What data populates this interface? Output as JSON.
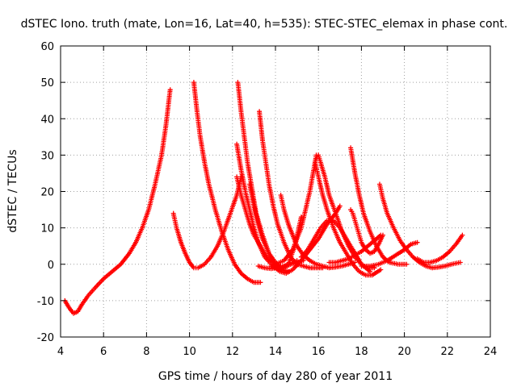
{
  "chart_data": {
    "type": "scatter",
    "title": "dSTEC Iono. truth (mate, Lon=16, Lat=40, h=535): STEC-STEC_elemax in phase cont.",
    "xlabel": "GPS time / hours of day 280 of year 2011",
    "ylabel": "dSTEC  / TECUs",
    "xlim": [
      4,
      24
    ],
    "ylim": [
      -20,
      60
    ],
    "x_ticks": [
      4,
      6,
      8,
      10,
      12,
      14,
      16,
      18,
      20,
      22,
      24
    ],
    "y_ticks": [
      -20,
      -10,
      0,
      10,
      20,
      30,
      40,
      50,
      60
    ],
    "x_tick_labels": [
      "4",
      "6",
      "8",
      "10",
      "12",
      "14",
      "16",
      "18",
      "20",
      "22",
      "24"
    ],
    "y_tick_labels": [
      "-20",
      "-10",
      "0",
      "10",
      "20",
      "30",
      "40",
      "50",
      "60"
    ],
    "grid": true,
    "marker": "+",
    "color": "#ff0000",
    "series": [
      {
        "x": [
          4.2,
          4.4,
          4.6,
          4.8,
          5.0,
          5.3,
          5.6,
          6.0,
          6.4,
          6.8,
          7.2,
          7.5,
          7.8,
          8.1,
          8.4,
          8.7,
          8.9,
          9.1
        ],
        "y": [
          -10,
          -12,
          -13.5,
          -13,
          -11,
          -8.5,
          -6.5,
          -4,
          -2,
          0,
          3,
          6,
          10,
          15,
          22,
          30,
          38,
          48
        ]
      },
      {
        "x": [
          9.25,
          9.4,
          9.6,
          9.8,
          10.0,
          10.2,
          10.4,
          10.7,
          11.0,
          11.3,
          11.6,
          11.9,
          12.2,
          12.4
        ],
        "y": [
          14,
          10,
          6,
          3,
          0.5,
          -1,
          -1,
          0,
          2,
          5,
          9,
          14,
          19,
          24
        ]
      },
      {
        "x": [
          10.2,
          10.35,
          10.5,
          10.7,
          10.9,
          11.2,
          11.5,
          11.8,
          12.1,
          12.4,
          12.7,
          13.0,
          13.3
        ],
        "y": [
          50,
          42,
          35,
          28,
          22,
          15,
          9,
          4,
          0,
          -2.5,
          -4,
          -5,
          -5
        ]
      },
      {
        "x": [
          12.25,
          12.4,
          12.55,
          12.7,
          12.9,
          13.1,
          13.4,
          13.7,
          14.0,
          14.3,
          14.6
        ],
        "y": [
          50,
          42,
          35,
          28,
          21,
          14,
          8,
          3,
          0,
          -1.5,
          -2
        ]
      },
      {
        "x": [
          12.2,
          12.4,
          12.6,
          12.8,
          13.0,
          13.2,
          13.5,
          13.8,
          14.1,
          14.4,
          14.7,
          15.0
        ],
        "y": [
          33,
          26,
          20,
          15,
          10,
          6,
          2,
          0,
          -1,
          -1,
          0,
          1
        ]
      },
      {
        "x": [
          12.2,
          12.4,
          12.6,
          12.8,
          13.0,
          13.3,
          13.6,
          14.0,
          14.4,
          14.8,
          15.2,
          15.6,
          15.9
        ],
        "y": [
          24,
          19,
          15,
          11,
          8,
          5,
          2,
          0,
          1,
          4,
          10,
          20,
          30
        ]
      },
      {
        "x": [
          12.8,
          13.0,
          13.2,
          13.4,
          13.7,
          14.0,
          14.3,
          14.6,
          14.9,
          15.2
        ],
        "y": [
          22,
          16,
          11,
          7,
          3,
          0.5,
          -1,
          0,
          5,
          13
        ]
      },
      {
        "x": [
          13.25,
          13.4,
          13.55,
          13.7,
          13.9,
          14.1,
          14.4,
          14.7,
          15.0,
          15.3,
          15.6,
          15.9,
          16.2
        ],
        "y": [
          42,
          34,
          28,
          22,
          16,
          11,
          6,
          2,
          0,
          -0.5,
          -1,
          -1,
          -1
        ]
      },
      {
        "x": [
          13.2,
          13.5,
          13.8,
          14.1,
          14.4,
          14.7,
          15.0,
          15.3
        ],
        "y": [
          -0.5,
          -1,
          -1.2,
          -1,
          -0.5,
          0,
          0.5,
          1
        ]
      },
      {
        "x": [
          13.8,
          14.0,
          14.2,
          14.5,
          14.8,
          15.2,
          15.6,
          16.0,
          16.4,
          16.8,
          17.0
        ],
        "y": [
          -0.5,
          -1,
          -2,
          -2.5,
          -1.5,
          1,
          4,
          7,
          11,
          14,
          16
        ]
      },
      {
        "x": [
          14.25,
          14.4,
          14.6,
          14.8,
          15.0,
          15.3,
          15.6,
          15.9,
          16.2,
          16.5,
          16.8,
          17.1,
          17.4,
          17.7
        ],
        "y": [
          19,
          15,
          11,
          8,
          5,
          2.5,
          1,
          0,
          -0.5,
          -1,
          -0.8,
          -0.5,
          0,
          0.5
        ]
      },
      {
        "x": [
          15.2,
          15.5,
          15.8,
          16.1,
          16.4,
          16.7,
          17.0,
          17.3,
          17.6,
          18.0,
          18.4
        ],
        "y": [
          2,
          4,
          7,
          10,
          12,
          12,
          10,
          7,
          4,
          0,
          -2
        ]
      },
      {
        "x": [
          15.9,
          16.0,
          16.1,
          16.3,
          16.5,
          16.8,
          17.1,
          17.4,
          17.7,
          18.0,
          18.3,
          18.6
        ],
        "y": [
          29,
          30,
          28,
          24,
          19,
          14,
          9,
          5,
          2,
          0,
          -1,
          -1
        ]
      },
      {
        "x": [
          15.85,
          16.0,
          16.2,
          16.4,
          16.7,
          17.0,
          17.3,
          17.6,
          17.9,
          18.2,
          18.5,
          18.9
        ],
        "y": [
          28,
          24,
          19,
          15,
          10,
          6,
          3,
          0,
          -2,
          -3,
          -3,
          -1.5
        ]
      },
      {
        "x": [
          17.5,
          17.7,
          17.9,
          18.1,
          18.4,
          18.7,
          19.0,
          19.3,
          19.7,
          20.1
        ],
        "y": [
          32,
          25,
          19,
          14,
          9,
          5,
          2,
          0.5,
          0,
          0
        ]
      },
      {
        "x": [
          17.5,
          17.6,
          17.7,
          17.8,
          17.9,
          18.0,
          18.2,
          18.4,
          18.6,
          18.8,
          19.0
        ],
        "y": [
          15,
          14,
          12,
          10,
          8,
          6,
          4,
          3,
          3.5,
          5.5,
          8
        ]
      },
      {
        "x": [
          16.5,
          16.8,
          17.1,
          17.4,
          17.7,
          18.0,
          18.3,
          18.6,
          18.9
        ],
        "y": [
          0.5,
          0.5,
          1,
          1.5,
          2.5,
          3.5,
          5,
          6.5,
          8
        ]
      },
      {
        "x": [
          18.85,
          19.0,
          19.2,
          19.5,
          19.8,
          20.1,
          20.4,
          20.7,
          21.0,
          21.3,
          21.6,
          21.9,
          22.2,
          22.6
        ],
        "y": [
          22,
          18,
          14,
          10,
          6.5,
          4,
          2,
          0.5,
          -0.5,
          -1,
          -0.8,
          -0.5,
          0,
          0.5
        ]
      },
      {
        "x": [
          18.0,
          18.4,
          18.8,
          19.2,
          19.6,
          20.0,
          20.3,
          20.6
        ],
        "y": [
          -0.5,
          -0.5,
          0,
          1,
          2.5,
          4,
          5.5,
          6
        ]
      },
      {
        "x": [
          20.6,
          20.9,
          21.2,
          21.5,
          21.8,
          22.1,
          22.4,
          22.7
        ],
        "y": [
          1.5,
          0.5,
          0.5,
          1,
          2,
          3.5,
          5.5,
          8
        ]
      }
    ]
  }
}
